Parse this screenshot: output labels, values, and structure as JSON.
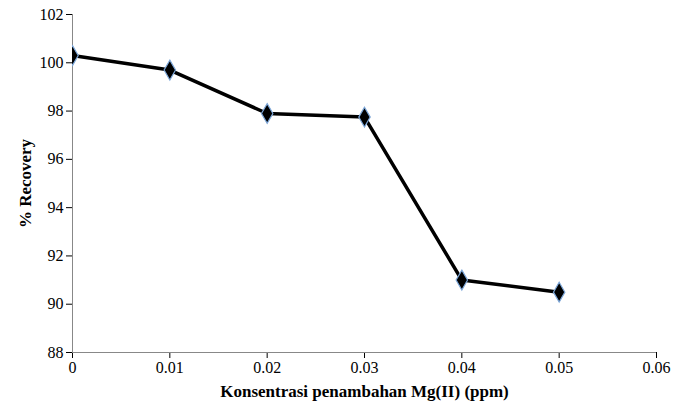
{
  "chart_data": {
    "type": "line",
    "x_label": "Konsentrasi penambahan Mg(II) (ppm)",
    "y_label": "% Recovery",
    "x": [
      0,
      0.01,
      0.02,
      0.03,
      0.04,
      0.05
    ],
    "series": [
      {
        "name": "% Recovery",
        "color": "#000000",
        "marker": "diamond",
        "values": [
          100.3,
          99.7,
          97.9,
          97.75,
          91.0,
          90.5
        ]
      }
    ],
    "xlim": [
      0,
      0.06
    ],
    "xticks": [
      0,
      0.01,
      0.02,
      0.03,
      0.04,
      0.05,
      0.06
    ],
    "ylim": [
      88,
      102
    ],
    "yticks": [
      88,
      90,
      92,
      94,
      96,
      98,
      100,
      102
    ],
    "grid": false
  }
}
